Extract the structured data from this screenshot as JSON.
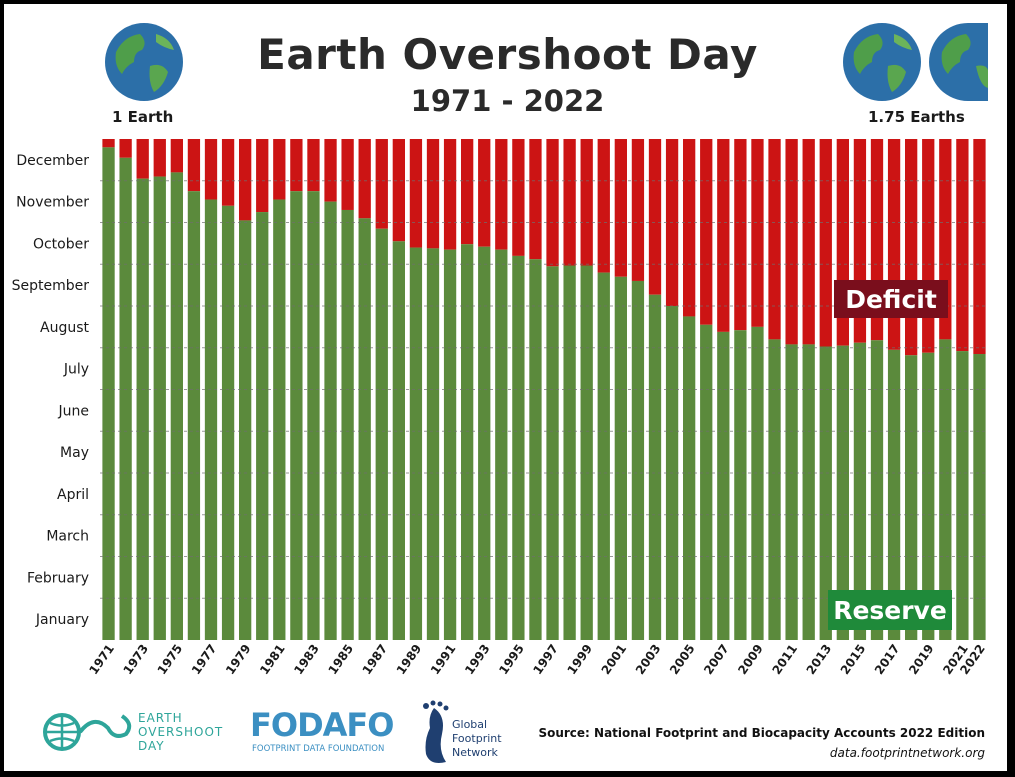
{
  "header": {
    "title": "Earth Overshoot Day",
    "subtitle": "1971 - 2022",
    "left_globe_label": "1 Earth",
    "right_globe_label": "1.75 Earths"
  },
  "footer": {
    "source": "Source: National Footprint and Biocapacity Accounts 2022 Edition",
    "url": "data.footprintnetwork.org",
    "logos": {
      "overshoot": "EARTH OVERSHOOT DAY",
      "fodafo": "FODAFO",
      "fodafo_sub": "FOOTPRINT DATA FOUNDATION",
      "gfn": "Global Footprint Network"
    }
  },
  "colors": {
    "reserve": "#5b8a3c",
    "deficit": "#cc1414",
    "deficit_label_bg": "#7a0e1c",
    "reserve_label_bg": "#1f8a3a",
    "grid": "#6f6f6f"
  },
  "chart_data": {
    "type": "bar",
    "stacked": true,
    "x": [
      1971,
      1972,
      1973,
      1974,
      1975,
      1976,
      1977,
      1978,
      1979,
      1980,
      1981,
      1982,
      1983,
      1984,
      1985,
      1986,
      1987,
      1988,
      1989,
      1990,
      1991,
      1992,
      1993,
      1994,
      1995,
      1996,
      1997,
      1998,
      1999,
      2000,
      2001,
      2002,
      2003,
      2004,
      2005,
      2006,
      2007,
      2008,
      2009,
      2010,
      2011,
      2012,
      2013,
      2014,
      2015,
      2016,
      2017,
      2018,
      2019,
      2020,
      2021,
      2022
    ],
    "x_tick_labels": [
      "1971",
      "1973",
      "1975",
      "1977",
      "1979",
      "1981",
      "1983",
      "1985",
      "1987",
      "1989",
      "1991",
      "1993",
      "1995",
      "1997",
      "1999",
      "2001",
      "2003",
      "2005",
      "2007",
      "2009",
      "2011",
      "2013",
      "2015",
      "2017",
      "2019",
      "2021",
      "2022"
    ],
    "y_tick_labels": [
      "January",
      "February",
      "March",
      "April",
      "May",
      "June",
      "July",
      "August",
      "September",
      "October",
      "November",
      "December"
    ],
    "ylim": [
      0,
      12
    ],
    "series": [
      {
        "name": "Reserve",
        "values": [
          11.8,
          11.55,
          11.05,
          11.1,
          11.2,
          10.75,
          10.55,
          10.4,
          10.05,
          10.25,
          10.55,
          10.75,
          10.75,
          10.5,
          10.3,
          10.1,
          9.85,
          9.55,
          9.4,
          9.38,
          9.35,
          9.48,
          9.42,
          9.35,
          9.2,
          9.12,
          8.95,
          8.97,
          8.97,
          8.8,
          8.7,
          8.6,
          8.27,
          8.0,
          7.75,
          7.55,
          7.38,
          7.42,
          7.5,
          7.2,
          7.08,
          7.08,
          7.03,
          7.05,
          7.12,
          7.18,
          6.95,
          6.82,
          6.88,
          7.2,
          6.92,
          6.85
        ]
      },
      {
        "name": "Deficit"
      }
    ],
    "annotations": [
      "Deficit",
      "Reserve"
    ]
  }
}
